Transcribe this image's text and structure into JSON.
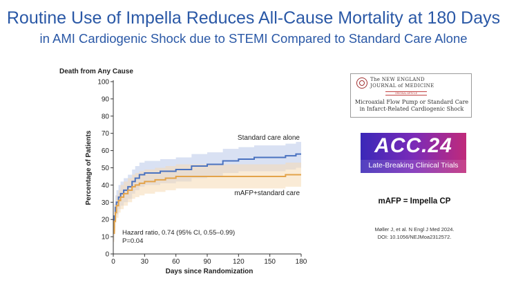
{
  "slide": {
    "title_line1": "Routine Use of Impella Reduces All-Cause Mortality at 180 Days",
    "title_line2": "in AMI Cardiogenic Shock due to STEMI Compared to Standard Care Alone",
    "impella_note": "mAFP = Impella CP",
    "citation_line1": "Møller J, et al. N Engl J Med 2024.",
    "citation_line2": "DOI: 10.1056/NEJMoa2312572."
  },
  "nejm_card": {
    "journal_line1": "The NEW ENGLAND",
    "journal_line2": "JOURNAL of MEDICINE",
    "badge": "ORIGINAL ARTICLE",
    "article_line1": "Microaxial Flow Pump or Standard Care",
    "article_line2": "in Infarct-Related Cardiogenic Shock"
  },
  "acc_card": {
    "logo": "ACC.24",
    "subtitle": "Late-Breaking Clinical Trials"
  },
  "chart_data": {
    "type": "line",
    "title": "Death from Any Cause",
    "xlabel": "Days since Randomization",
    "ylabel": "Percentage of Patients",
    "xlim": [
      0,
      180
    ],
    "ylim": [
      0,
      100
    ],
    "xticks": [
      0,
      30,
      60,
      90,
      120,
      150,
      180
    ],
    "yticks": [
      0,
      10,
      20,
      30,
      40,
      50,
      60,
      70,
      80,
      90,
      100
    ],
    "annotation_line1": "Hazard ratio, 0.74 (95% CI, 0.55–0.99)",
    "annotation_line2": "P=0.04",
    "series": [
      {
        "name": "Standard care alone",
        "color": "#4a72c0",
        "band_color": "#b9c8ea",
        "x": [
          0,
          1,
          2,
          3,
          5,
          7,
          10,
          14,
          18,
          21,
          25,
          30,
          35,
          45,
          60,
          75,
          90,
          105,
          120,
          135,
          150,
          165,
          175,
          180
        ],
        "y": [
          14,
          22,
          27,
          30,
          33,
          35,
          37,
          39,
          42,
          44,
          46,
          47,
          47,
          48,
          49,
          51,
          52,
          54,
          55,
          56,
          56,
          57,
          58,
          58
        ],
        "lower": [
          8,
          15,
          20,
          23,
          26,
          28,
          30,
          32,
          35,
          37,
          39,
          40,
          40,
          41,
          42,
          44,
          45,
          47,
          48,
          48,
          48,
          49,
          50,
          50
        ],
        "upper": [
          20,
          29,
          34,
          37,
          40,
          42,
          44,
          46,
          49,
          51,
          53,
          54,
          54,
          55,
          56,
          58,
          59,
          61,
          62,
          63,
          63,
          64,
          65,
          65
        ]
      },
      {
        "name": "mAFP+standard care",
        "color": "#e3a34a",
        "band_color": "#f5dbb5",
        "x": [
          0,
          1,
          2,
          3,
          5,
          7,
          10,
          14,
          18,
          21,
          25,
          30,
          40,
          50,
          60,
          75,
          90,
          105,
          120,
          135,
          150,
          165,
          180
        ],
        "y": [
          12,
          19,
          24,
          28,
          31,
          33,
          35,
          37,
          39,
          40,
          41,
          42,
          43,
          44,
          45,
          45,
          45,
          45,
          45,
          45,
          45,
          46,
          46
        ],
        "lower": [
          7,
          13,
          18,
          21,
          24,
          26,
          28,
          30,
          32,
          33,
          34,
          35,
          36,
          37,
          38,
          38,
          38,
          38,
          38,
          38,
          38,
          39,
          39
        ],
        "upper": [
          17,
          25,
          30,
          34,
          37,
          40,
          42,
          44,
          46,
          47,
          48,
          49,
          50,
          51,
          52,
          52,
          52,
          52,
          52,
          52,
          52,
          53,
          53
        ]
      }
    ]
  }
}
